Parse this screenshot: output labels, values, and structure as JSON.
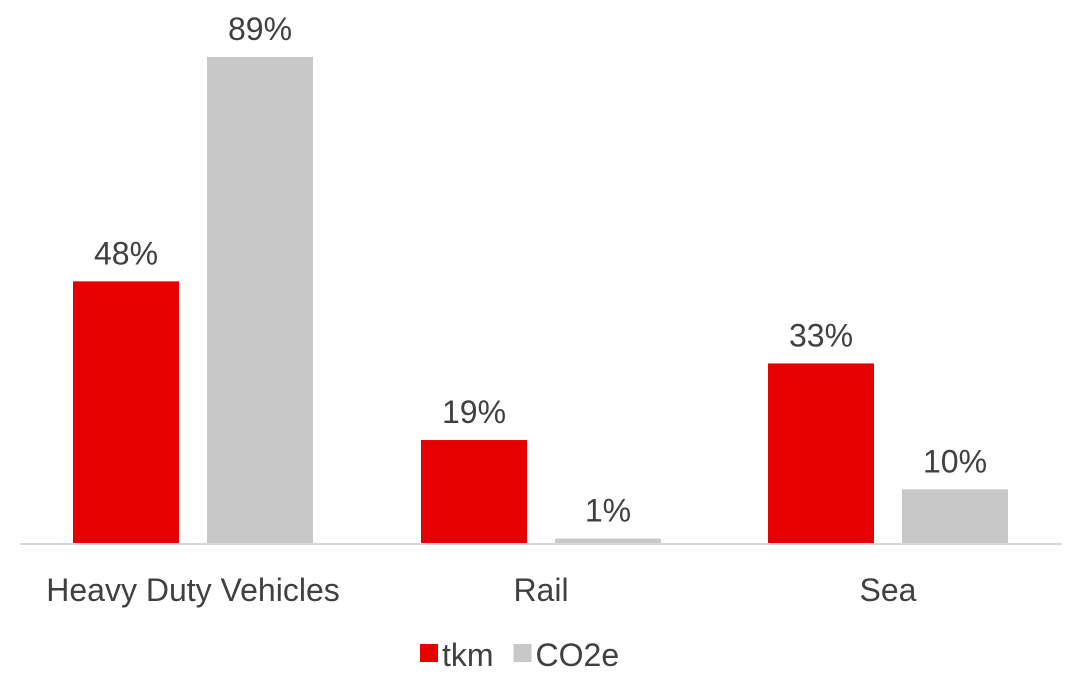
{
  "chart_data": {
    "type": "bar",
    "categories": [
      "Heavy Duty Vehicles",
      "Rail",
      "Sea"
    ],
    "series": [
      {
        "name": "tkm",
        "values": [
          48,
          19,
          33
        ],
        "labels": [
          "48%",
          "19%",
          "33%"
        ],
        "color": "#e60000"
      },
      {
        "name": "CO2e",
        "values": [
          89,
          1,
          10
        ],
        "labels": [
          "89%",
          "1%",
          "10%"
        ],
        "color": "#c8c8c8"
      }
    ],
    "unit": "%",
    "ylim": [
      0,
      100
    ],
    "grid": false,
    "legend_position": "bottom",
    "axis_color": "#d9d9d9"
  }
}
